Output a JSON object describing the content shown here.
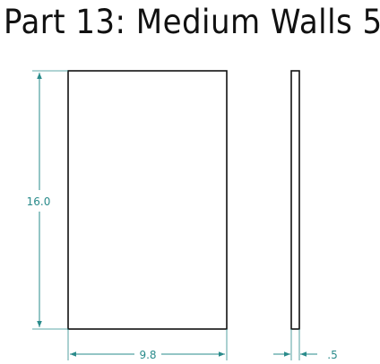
{
  "title": "Part 13: Medium Walls 5",
  "dimensions": {
    "height": "16.0",
    "width": "9.8",
    "thickness": ".5"
  },
  "colors": {
    "outline": "#111111",
    "dimension": "#2a8b8b"
  }
}
